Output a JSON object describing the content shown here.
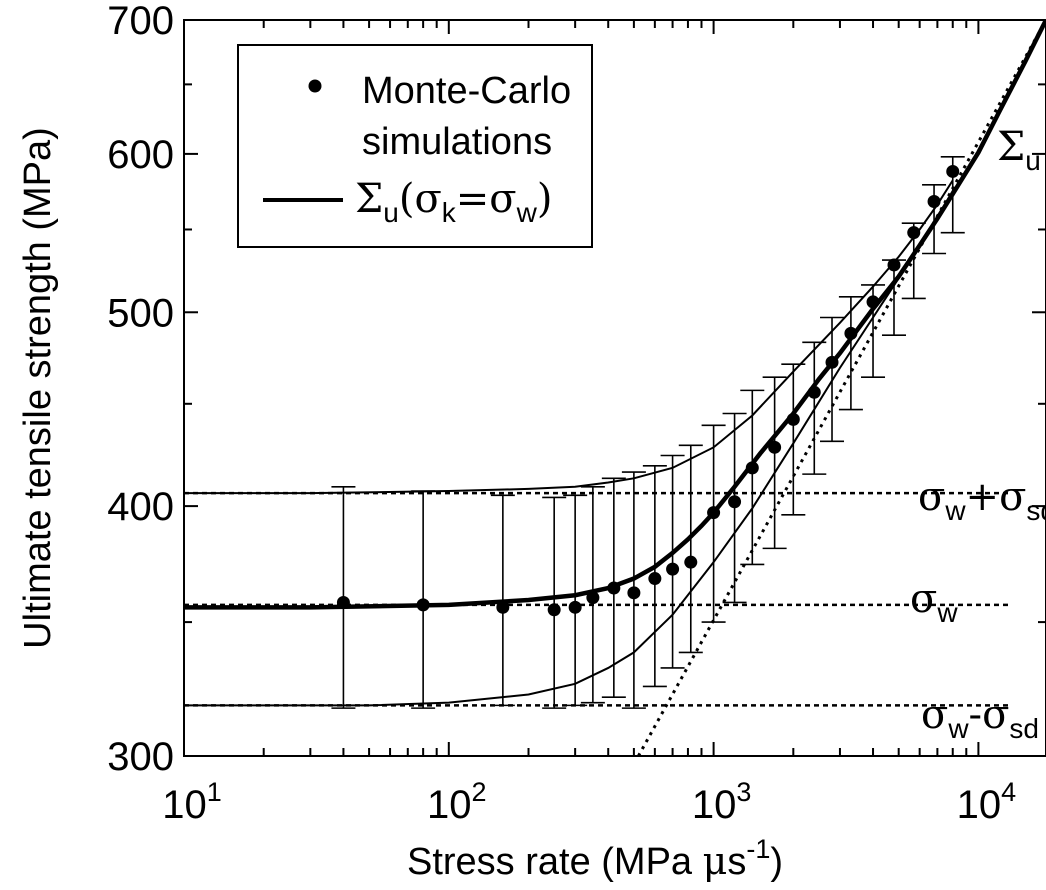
{
  "chart_data": {
    "type": "scatter",
    "xscale": "log",
    "yscale": "log",
    "xlim": [
      10,
      18000
    ],
    "ylim": [
      300,
      700
    ],
    "x_ticks": [
      {
        "value": 10,
        "base": "10",
        "exp": "1"
      },
      {
        "value": 100,
        "base": "10",
        "exp": "2"
      },
      {
        "value": 1000,
        "base": "10",
        "exp": "3"
      },
      {
        "value": 10000,
        "base": "10",
        "exp": "4"
      }
    ],
    "y_ticks": [
      {
        "value": 300,
        "label": "300"
      },
      {
        "value": 400,
        "label": "400"
      },
      {
        "value": 500,
        "label": "500"
      },
      {
        "value": 600,
        "label": "600"
      },
      {
        "value": 700,
        "label": "700"
      }
    ],
    "xlabel": {
      "main": "Stress rate (MPa ",
      "mu": "μ",
      "unit": "s",
      "exp": "-1",
      "close": ")"
    },
    "ylabel": "Ultimate tensile strength (MPa)",
    "legend": {
      "placement": "top-left",
      "entries": [
        {
          "kind": "marker",
          "line1": "Monte-Carlo",
          "line2": "simulations"
        },
        {
          "kind": "line",
          "sym": "Σ",
          "sub1": "u",
          "open": "(",
          "sym2": "σ",
          "sub2": "k",
          "eq": "=",
          "sym3": "σ",
          "sub3": "w",
          "close": ")"
        }
      ]
    },
    "annotations": {
      "sigma_u": {
        "sym": "Σ",
        "sub": "u"
      },
      "sigma_w_plus": {
        "sym": "σ",
        "sub": "w",
        "op": "+",
        "sym2": "σ",
        "sub2": "sd"
      },
      "sigma_w": {
        "sym": "σ",
        "sub": "w"
      },
      "sigma_w_minus": {
        "sym": "σ",
        "sub": "w",
        "op": "-",
        "sym2": "σ",
        "sub2": "sd"
      }
    },
    "reference_levels": {
      "sigma_w": 357,
      "sigma_w_plus_sd": 406,
      "sigma_w_minus_sd": 318
    },
    "sigma_u_asymptote": [
      [
        520,
        300
      ],
      [
        18000,
        700
      ]
    ],
    "series": [
      {
        "name": "Monte-Carlo simulations",
        "style": "markers",
        "x": [
          40,
          80,
          160,
          250,
          300,
          350,
          420,
          500,
          600,
          700,
          820,
          1000,
          1200,
          1400,
          1700,
          2000,
          2400,
          2800,
          3300,
          4000,
          4800,
          5700,
          6800,
          8000
        ],
        "y": [
          358,
          357,
          356,
          355,
          356,
          360,
          364,
          362,
          368,
          372,
          375,
          397,
          402,
          418,
          428,
          442,
          456,
          472,
          488,
          506,
          528,
          548,
          568,
          588
        ],
        "error_bars": [
          {
            "lower": 317,
            "upper": 409
          },
          {
            "lower": 317,
            "upper": 407
          },
          {
            "lower": 318,
            "upper": 405
          },
          {
            "lower": 317,
            "upper": 404
          },
          {
            "lower": 318,
            "upper": 405
          },
          {
            "lower": 319,
            "upper": 409
          },
          {
            "lower": 321,
            "upper": 413
          },
          {
            "lower": 317,
            "upper": 416
          },
          {
            "lower": 325,
            "upper": 419
          },
          {
            "lower": 332,
            "upper": 424
          },
          {
            "lower": 338,
            "upper": 429
          },
          {
            "lower": 350,
            "upper": 439
          },
          {
            "lower": 358,
            "upper": 445
          },
          {
            "lower": 374,
            "upper": 457
          },
          {
            "lower": 381,
            "upper": 464
          },
          {
            "lower": 396,
            "upper": 471
          },
          {
            "lower": 415,
            "upper": 483
          },
          {
            "lower": 431,
            "upper": 497
          },
          {
            "lower": 447,
            "upper": 509
          },
          {
            "lower": 464,
            "upper": 516
          },
          {
            "lower": 487,
            "upper": 531
          },
          {
            "lower": 508,
            "upper": 554
          },
          {
            "lower": 535,
            "upper": 579
          },
          {
            "lower": 548,
            "upper": 598
          }
        ]
      },
      {
        "name": "Σu(σk=σw)",
        "style": "thick-line",
        "x": [
          10,
          30,
          100,
          200,
          300,
          400,
          500,
          600,
          700,
          800,
          900,
          1000,
          1200,
          1500,
          2000,
          2500,
          3000,
          4000,
          5000,
          6000,
          7000,
          8000,
          10000,
          12000,
          15000,
          18000
        ],
        "y": [
          356,
          356,
          357,
          359,
          361,
          364,
          368,
          373,
          379,
          385,
          391,
          397,
          409,
          425,
          445,
          463,
          477,
          502,
          521,
          540,
          557,
          573,
          601,
          630,
          667,
          700
        ]
      },
      {
        "style": "thin-line",
        "x": [
          10,
          30,
          100,
          200,
          300,
          400,
          500,
          700,
          1000,
          1400,
          2000,
          3000,
          4000,
          5000,
          6000,
          7000,
          8000
        ],
        "y": [
          406,
          406,
          407,
          408,
          409,
          411,
          413,
          418,
          428,
          444,
          467,
          494,
          515,
          533,
          550,
          566,
          582
        ]
      },
      {
        "style": "thin-line",
        "x": [
          10,
          50,
          100,
          200,
          300,
          400,
          500,
          700,
          1000,
          1400,
          2000,
          3000,
          4000,
          5000,
          6000,
          7000,
          8000
        ],
        "y": [
          318,
          318,
          319,
          322,
          326,
          332,
          338,
          353,
          375,
          399,
          430,
          469,
          497,
          520,
          540,
          558,
          575
        ]
      }
    ]
  }
}
